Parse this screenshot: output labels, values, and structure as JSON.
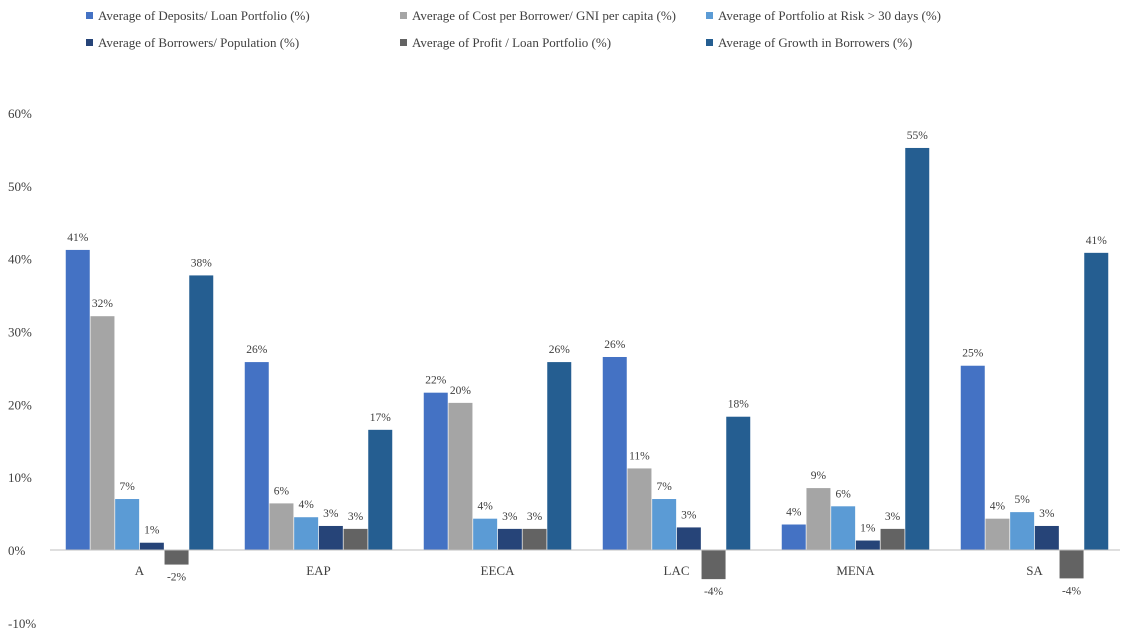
{
  "chart_data": {
    "type": "bar",
    "categories": [
      "A",
      "EAP",
      "EECA",
      "LAC",
      "MENA",
      "SA"
    ],
    "series": [
      {
        "name": "Average of Deposits/ Loan Portfolio (%)",
        "color": "#4472C4",
        "values": [
          41,
          26,
          22,
          26,
          4,
          25
        ],
        "plot_values": [
          41.2,
          25.8,
          21.6,
          26.5,
          3.5,
          25.3
        ],
        "labels": [
          "41%",
          "26%",
          "22%",
          "26%",
          "4%",
          "25%"
        ]
      },
      {
        "name": "Average of Cost per Borrower/ GNI per capita (%)",
        "color": "#A5A5A5",
        "values": [
          32,
          6,
          20,
          11,
          9,
          4
        ],
        "plot_values": [
          32.1,
          6.4,
          20.2,
          11.2,
          8.5,
          4.3
        ],
        "labels": [
          "32%",
          "6%",
          "20%",
          "11%",
          "9%",
          "4%"
        ]
      },
      {
        "name": "Average of Portfolio at Risk > 30 days (%)",
        "color": "#5B9BD5",
        "values": [
          7,
          4,
          4,
          7,
          6,
          5
        ],
        "plot_values": [
          7.0,
          4.5,
          4.3,
          7.0,
          6.0,
          5.2
        ],
        "labels": [
          "7%",
          "4%",
          "4%",
          "7%",
          "6%",
          "5%"
        ]
      },
      {
        "name": "Average of Borrowers/ Population (%)",
        "color": "#264478",
        "values": [
          1,
          3,
          3,
          3,
          1,
          3
        ],
        "plot_values": [
          1.0,
          3.3,
          2.9,
          3.1,
          1.3,
          3.3
        ],
        "labels": [
          "1%",
          "3%",
          "3%",
          "3%",
          "1%",
          "3%"
        ]
      },
      {
        "name": "Average of Profit / Loan Portfolio (%)",
        "color": "#636363",
        "values": [
          -2,
          3,
          3,
          -4,
          3,
          -4
        ],
        "plot_values": [
          -2.0,
          2.9,
          2.9,
          -4.0,
          2.9,
          -3.9
        ],
        "labels": [
          "-2%",
          "3%",
          "3%",
          "-4%",
          "3%",
          "-4%"
        ]
      },
      {
        "name": "Average of Growth in Borrowers (%)",
        "color": "#255E91",
        "values": [
          38,
          17,
          26,
          18,
          55,
          41
        ],
        "plot_values": [
          37.7,
          16.5,
          25.8,
          18.3,
          55.2,
          40.8
        ],
        "labels": [
          "38%",
          "17%",
          "26%",
          "18%",
          "55%",
          "41%"
        ]
      }
    ],
    "ylim": [
      -10,
      60
    ],
    "yticks": [
      -10,
      0,
      10,
      20,
      30,
      40,
      50,
      60
    ],
    "ytick_labels": [
      "-10%",
      "0%",
      "10%",
      "20%",
      "30%",
      "40%",
      "50%",
      "60%"
    ],
    "grid": false,
    "legend": "top"
  }
}
